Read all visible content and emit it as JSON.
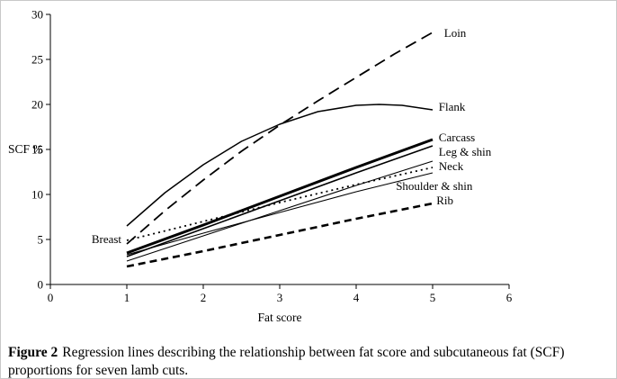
{
  "figure": {
    "caption_label": "Figure 2",
    "caption_text": "Regression lines describing the relationship between fat score and subcutaneous fat (SCF) proportions for seven lamb cuts."
  },
  "chart_data": {
    "type": "line",
    "title": "",
    "xlabel": "Fat score",
    "ylabel": "SCF %",
    "xlim": [
      0,
      6
    ],
    "ylim": [
      0,
      30
    ],
    "xticks": [
      0,
      1,
      2,
      3,
      4,
      5,
      6
    ],
    "yticks": [
      0,
      5,
      10,
      15,
      20,
      25,
      30
    ],
    "grid": false,
    "line_color": "#000000",
    "series": [
      {
        "name": "Loin",
        "dash": "13,7",
        "width": 1.8,
        "x": [
          1,
          1.5,
          2,
          2.5,
          3,
          3.5,
          4,
          4.5,
          5
        ],
        "y": [
          4.5,
          8.2,
          11.6,
          14.8,
          17.7,
          20.4,
          23.0,
          25.6,
          28.0
        ],
        "label": {
          "x": 5.15,
          "y": 27.9,
          "anchor": "start"
        }
      },
      {
        "name": "Flank",
        "dash": "",
        "width": 1.5,
        "x": [
          1,
          1.5,
          2,
          2.5,
          3,
          3.5,
          4,
          4.3,
          4.6,
          5
        ],
        "y": [
          6.5,
          10.2,
          13.3,
          15.9,
          17.8,
          19.2,
          19.9,
          20.0,
          19.9,
          19.4
        ],
        "label": {
          "x": 5.08,
          "y": 19.7,
          "anchor": "start"
        }
      },
      {
        "name": "Carcass",
        "dash": "",
        "width": 3,
        "x": [
          1,
          2,
          3,
          4,
          5
        ],
        "y": [
          3.5,
          6.6,
          9.8,
          13.0,
          16.1
        ],
        "label": {
          "x": 5.08,
          "y": 16.3,
          "anchor": "start"
        }
      },
      {
        "name": "Leg & shin",
        "dash": "",
        "width": 1.6,
        "x": [
          1,
          2,
          3,
          4,
          5
        ],
        "y": [
          3.1,
          6.2,
          9.3,
          12.4,
          15.4
        ],
        "label": {
          "x": 5.08,
          "y": 14.7,
          "anchor": "start"
        }
      },
      {
        "name": "Neck",
        "dash": "",
        "width": 1.1,
        "x": [
          1,
          2,
          3,
          4,
          5
        ],
        "y": [
          2.6,
          5.4,
          8.2,
          11.0,
          13.7
        ],
        "label": {
          "x": 5.08,
          "y": 13.1,
          "anchor": "start"
        }
      },
      {
        "name": "Shoulder & shin",
        "dash": "",
        "width": 1.1,
        "x": [
          1,
          2,
          3,
          4,
          5
        ],
        "y": [
          3.3,
          5.7,
          8.0,
          10.3,
          12.4
        ],
        "label": {
          "x": 4.52,
          "y": 10.9,
          "anchor": "start"
        }
      },
      {
        "name": "Breast",
        "dash": "2,4",
        "width": 1.8,
        "x": [
          1,
          2,
          3,
          4,
          5
        ],
        "y": [
          4.9,
          7.0,
          9.1,
          11.1,
          13.0
        ],
        "label": {
          "x": 0.93,
          "y": 5.0,
          "anchor": "end"
        }
      },
      {
        "name": "Rib",
        "dash": "8,5",
        "width": 2.6,
        "x": [
          1,
          2,
          3,
          4,
          5
        ],
        "y": [
          2.0,
          3.7,
          5.5,
          7.3,
          9.0
        ],
        "label": {
          "x": 5.05,
          "y": 9.3,
          "anchor": "start"
        }
      }
    ]
  }
}
